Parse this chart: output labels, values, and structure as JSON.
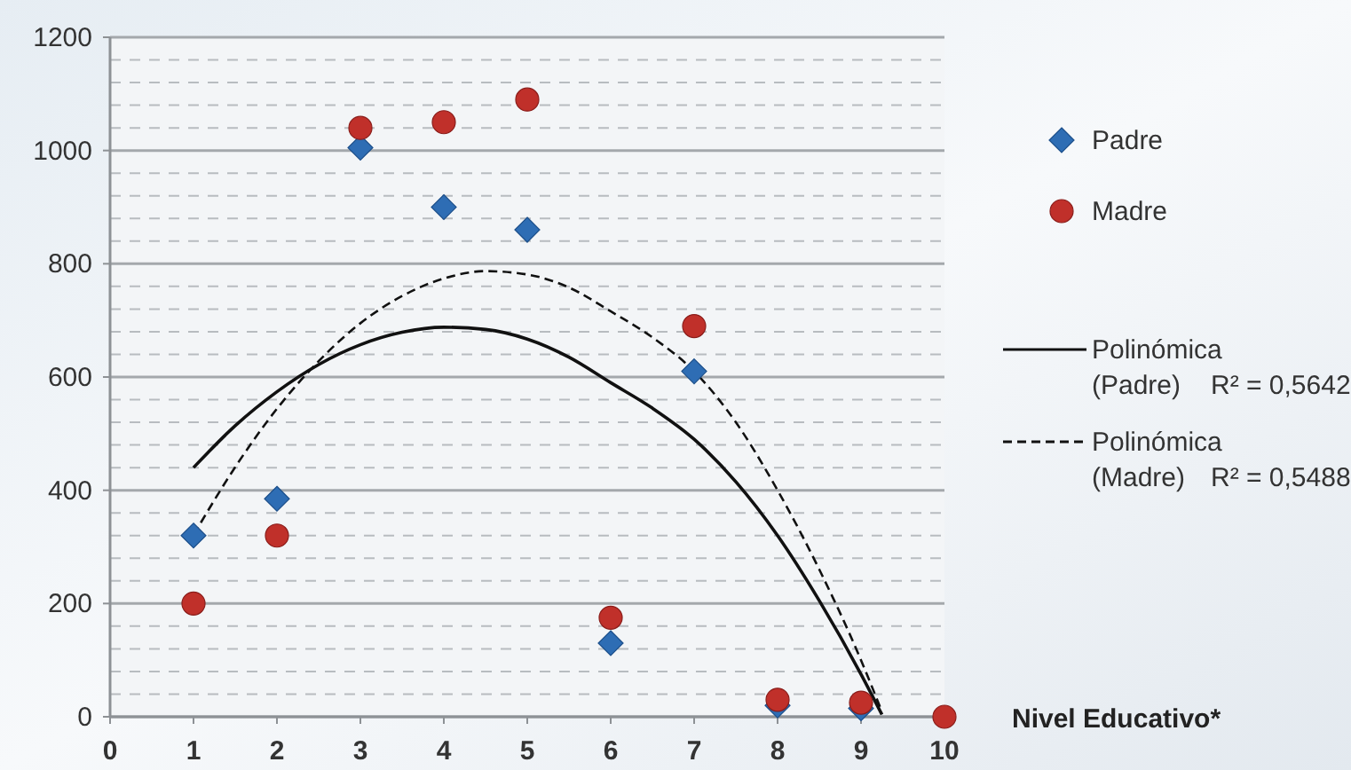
{
  "chart_data": {
    "type": "scatter",
    "xlabel": "Nivel Educativo*",
    "xlim": [
      0,
      10
    ],
    "xticks": [
      0,
      1,
      2,
      3,
      4,
      5,
      6,
      7,
      8,
      9,
      10
    ],
    "ylim": [
      0,
      1200
    ],
    "yticks": [
      0,
      200,
      400,
      600,
      800,
      1000,
      1200
    ],
    "grid": "y",
    "legend": "right",
    "series": [
      {
        "name": "Padre",
        "color": "#2e6db4",
        "marker": "diamond",
        "x": [
          1,
          2,
          3,
          4,
          5,
          6,
          7,
          8,
          9
        ],
        "values": [
          320,
          385,
          1005,
          900,
          860,
          130,
          610,
          20,
          15
        ]
      },
      {
        "name": "Madre",
        "color": "#c0302a",
        "marker": "circle",
        "x": [
          1,
          2,
          3,
          4,
          5,
          6,
          7,
          8,
          9,
          10
        ],
        "values": [
          200,
          320,
          1040,
          1050,
          1090,
          175,
          690,
          30,
          25,
          0
        ]
      },
      {
        "name": "Polinómica (Padre)",
        "type": "line",
        "line_style": "solid",
        "color": "#111111",
        "x": [
          1,
          1.5,
          2,
          2.5,
          3,
          3.5,
          4,
          4.5,
          5,
          5.5,
          6,
          6.5,
          7,
          7.5,
          8,
          8.5,
          9,
          9.25
        ],
        "values": [
          440,
          514,
          574,
          622,
          657,
          679,
          688,
          684,
          667,
          635,
          590,
          545,
          490,
          415,
          320,
          205,
          75,
          4
        ]
      },
      {
        "name": "Polinómica (Madre)",
        "type": "line",
        "line_style": "dashed",
        "color": "#111111",
        "x": [
          1,
          1.5,
          2,
          2.5,
          3,
          3.5,
          4,
          4.5,
          5,
          5.5,
          6,
          6.5,
          7,
          7.5,
          8,
          8.5,
          9,
          9.25
        ],
        "values": [
          321,
          441,
          544,
          628,
          695,
          743,
          774,
          787,
          781,
          758,
          716,
          670,
          610,
          520,
          400,
          260,
          100,
          9
        ]
      }
    ],
    "annotations": [
      "R² = 0,5642",
      "R² = 0,5488"
    ]
  }
}
